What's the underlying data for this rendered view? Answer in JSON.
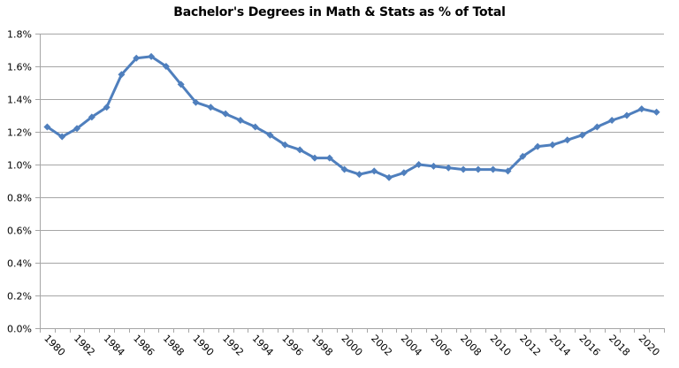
{
  "chart_data": {
    "type": "line",
    "title": "Bachelor's Degrees in Math & Stats as % of Total",
    "xlabel": "",
    "ylabel": "",
    "ylim": [
      0,
      1.8
    ],
    "yticks": [
      "0.0%",
      "0.2%",
      "0.4%",
      "0.6%",
      "0.8%",
      "1.0%",
      "1.2%",
      "1.4%",
      "1.6%",
      "1.8%"
    ],
    "xtick_labels": [
      "1980",
      "1982",
      "1984",
      "1986",
      "1988",
      "1990",
      "1992",
      "1994",
      "1996",
      "1998",
      "2000",
      "2002",
      "2004",
      "2006",
      "2008",
      "2010",
      "2012",
      "2014",
      "2016",
      "2018",
      "2020"
    ],
    "grid": true,
    "legend": "none",
    "marker": "diamond",
    "line_color": "#4f7fbd",
    "grid_color": "#a6a6a6",
    "categories": [
      1980,
      1981,
      1982,
      1983,
      1984,
      1985,
      1986,
      1987,
      1988,
      1989,
      1990,
      1991,
      1992,
      1993,
      1994,
      1995,
      1996,
      1997,
      1998,
      1999,
      2000,
      2001,
      2002,
      2003,
      2004,
      2005,
      2006,
      2007,
      2008,
      2009,
      2010,
      2011,
      2012,
      2013,
      2014,
      2015,
      2016,
      2017,
      2018,
      2019,
      2020,
      2021
    ],
    "series": [
      {
        "name": "Math & Stats % of Total Bachelor's Degrees",
        "unit": "%",
        "values": [
          1.23,
          1.17,
          1.22,
          1.29,
          1.35,
          1.55,
          1.65,
          1.66,
          1.6,
          1.49,
          1.38,
          1.35,
          1.31,
          1.27,
          1.23,
          1.18,
          1.12,
          1.09,
          1.04,
          1.04,
          0.97,
          0.94,
          0.96,
          0.92,
          0.95,
          1.0,
          0.99,
          0.98,
          0.97,
          0.97,
          0.97,
          0.96,
          1.05,
          1.11,
          1.12,
          1.15,
          1.18,
          1.23,
          1.27,
          1.3,
          1.34,
          1.32
        ]
      }
    ]
  }
}
